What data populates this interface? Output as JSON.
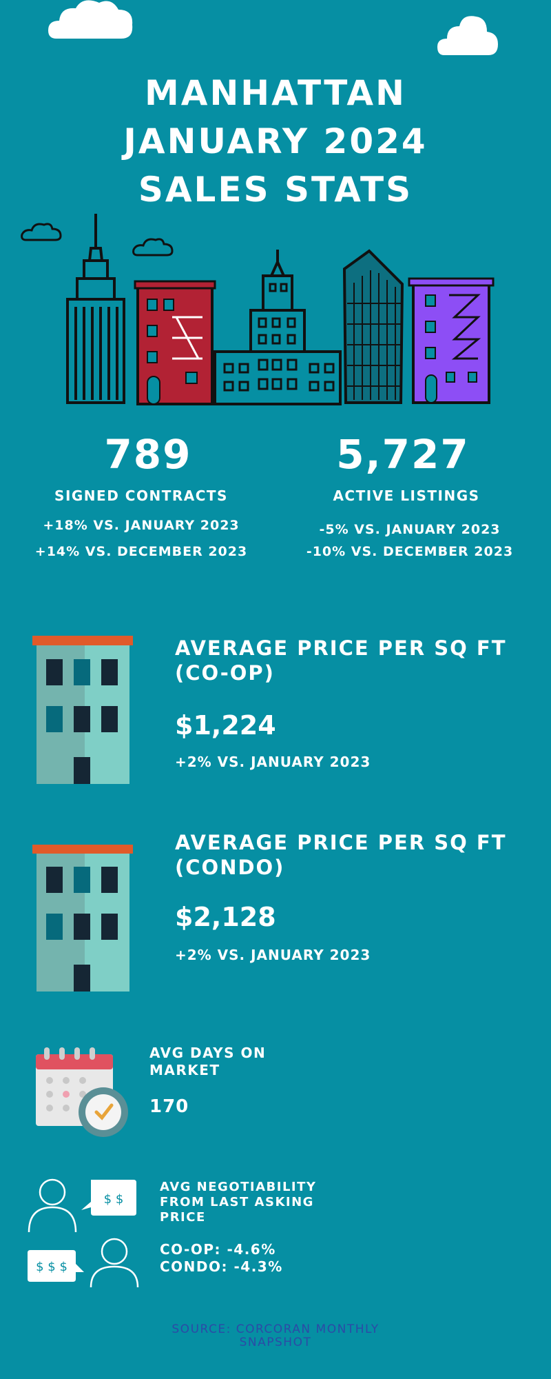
{
  "header": {
    "title_line1": "MANHATTAN",
    "title_line2": "JANUARY 2024",
    "title_line3": "SALES STATS"
  },
  "colors": {
    "background": "#068fa3",
    "text": "#ffffff",
    "source_text": "#2c4aa6",
    "building_red": "#b22234",
    "building_purple": "#8d4ef5",
    "building_teal": "#7fcfc6",
    "roof_orange": "#e05a2a",
    "window_dark": "#152634"
  },
  "contracts": {
    "value": "789",
    "label": "SIGNED CONTRACTS",
    "change_year": "+18% VS. JANUARY 2023",
    "change_month": "+14% VS. DECEMBER 2023"
  },
  "listings": {
    "value": "5,727",
    "label": "ACTIVE LISTINGS",
    "change_year": "-5% VS. JANUARY 2023",
    "change_month": "-10% VS. DECEMBER 2023"
  },
  "coop": {
    "title_line1": "AVERAGE PRICE PER SQ FT",
    "title_line2": "(CO-OP)",
    "value": "$1,224",
    "change": "+2% VS. JANUARY 2023"
  },
  "condo": {
    "title_line1": "AVERAGE PRICE PER SQ FT",
    "title_line2": "(CONDO)",
    "value": "$2,128",
    "change": "+2% VS. JANUARY 2023"
  },
  "days_on_market": {
    "title_line1": "AVG DAYS ON",
    "title_line2": "MARKET",
    "value": "170"
  },
  "negotiability": {
    "title_line1": "AVG NEGOTIABILITY",
    "title_line2": "FROM LAST ASKING",
    "title_line3": "PRICE",
    "coop": "CO-OP: -4.6%",
    "condo": "CONDO: -4.3%",
    "bubble_top": "$ $",
    "bubble_bottom": "$ $ $"
  },
  "source": {
    "line1": "SOURCE: CORCORAN MONTHLY",
    "line2": "SNAPSHOT"
  },
  "icons": [
    "cloud-icon",
    "skyline-illustration",
    "apartment-building-icon",
    "calendar-clock-icon",
    "negotiation-people-icon"
  ]
}
